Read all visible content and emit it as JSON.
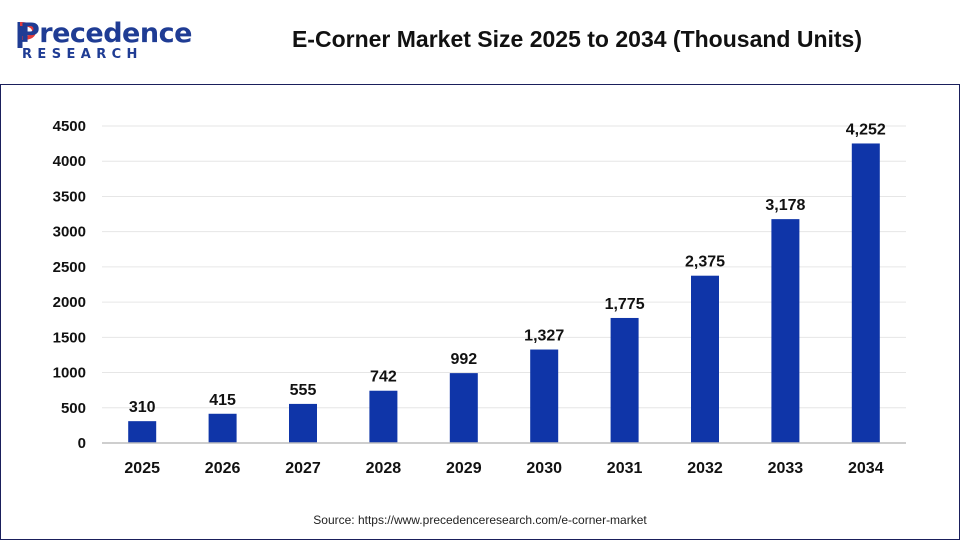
{
  "brand": {
    "name": "Precedence",
    "sub": "RESEARCH",
    "color": "#1f3c94"
  },
  "header": {
    "title": "E-Corner Market Size 2025 to 2034 (Thousand Units)"
  },
  "footer": {
    "source": "Source: https://www.precedenceresearch.com/e-corner-market"
  },
  "chart_data": {
    "type": "bar",
    "title": "E-Corner Market Size 2025 to 2034 (Thousand Units)",
    "xlabel": "",
    "ylabel": "",
    "categories": [
      "2025",
      "2026",
      "2027",
      "2028",
      "2029",
      "2030",
      "2031",
      "2032",
      "2033",
      "2034"
    ],
    "values": [
      310,
      415,
      555,
      742,
      992,
      1327,
      1775,
      2375,
      3178,
      4252
    ],
    "data_labels": [
      "310",
      "415",
      "555",
      "742",
      "992",
      "1,327",
      "1,775",
      "2,375",
      "3,178",
      "4,252"
    ],
    "ylim": [
      0,
      4500
    ],
    "yticks": [
      0,
      500,
      1000,
      1500,
      2000,
      2500,
      3000,
      3500,
      4000,
      4500
    ],
    "grid": true,
    "legend": "none",
    "bar_color": "#0f35a8"
  }
}
